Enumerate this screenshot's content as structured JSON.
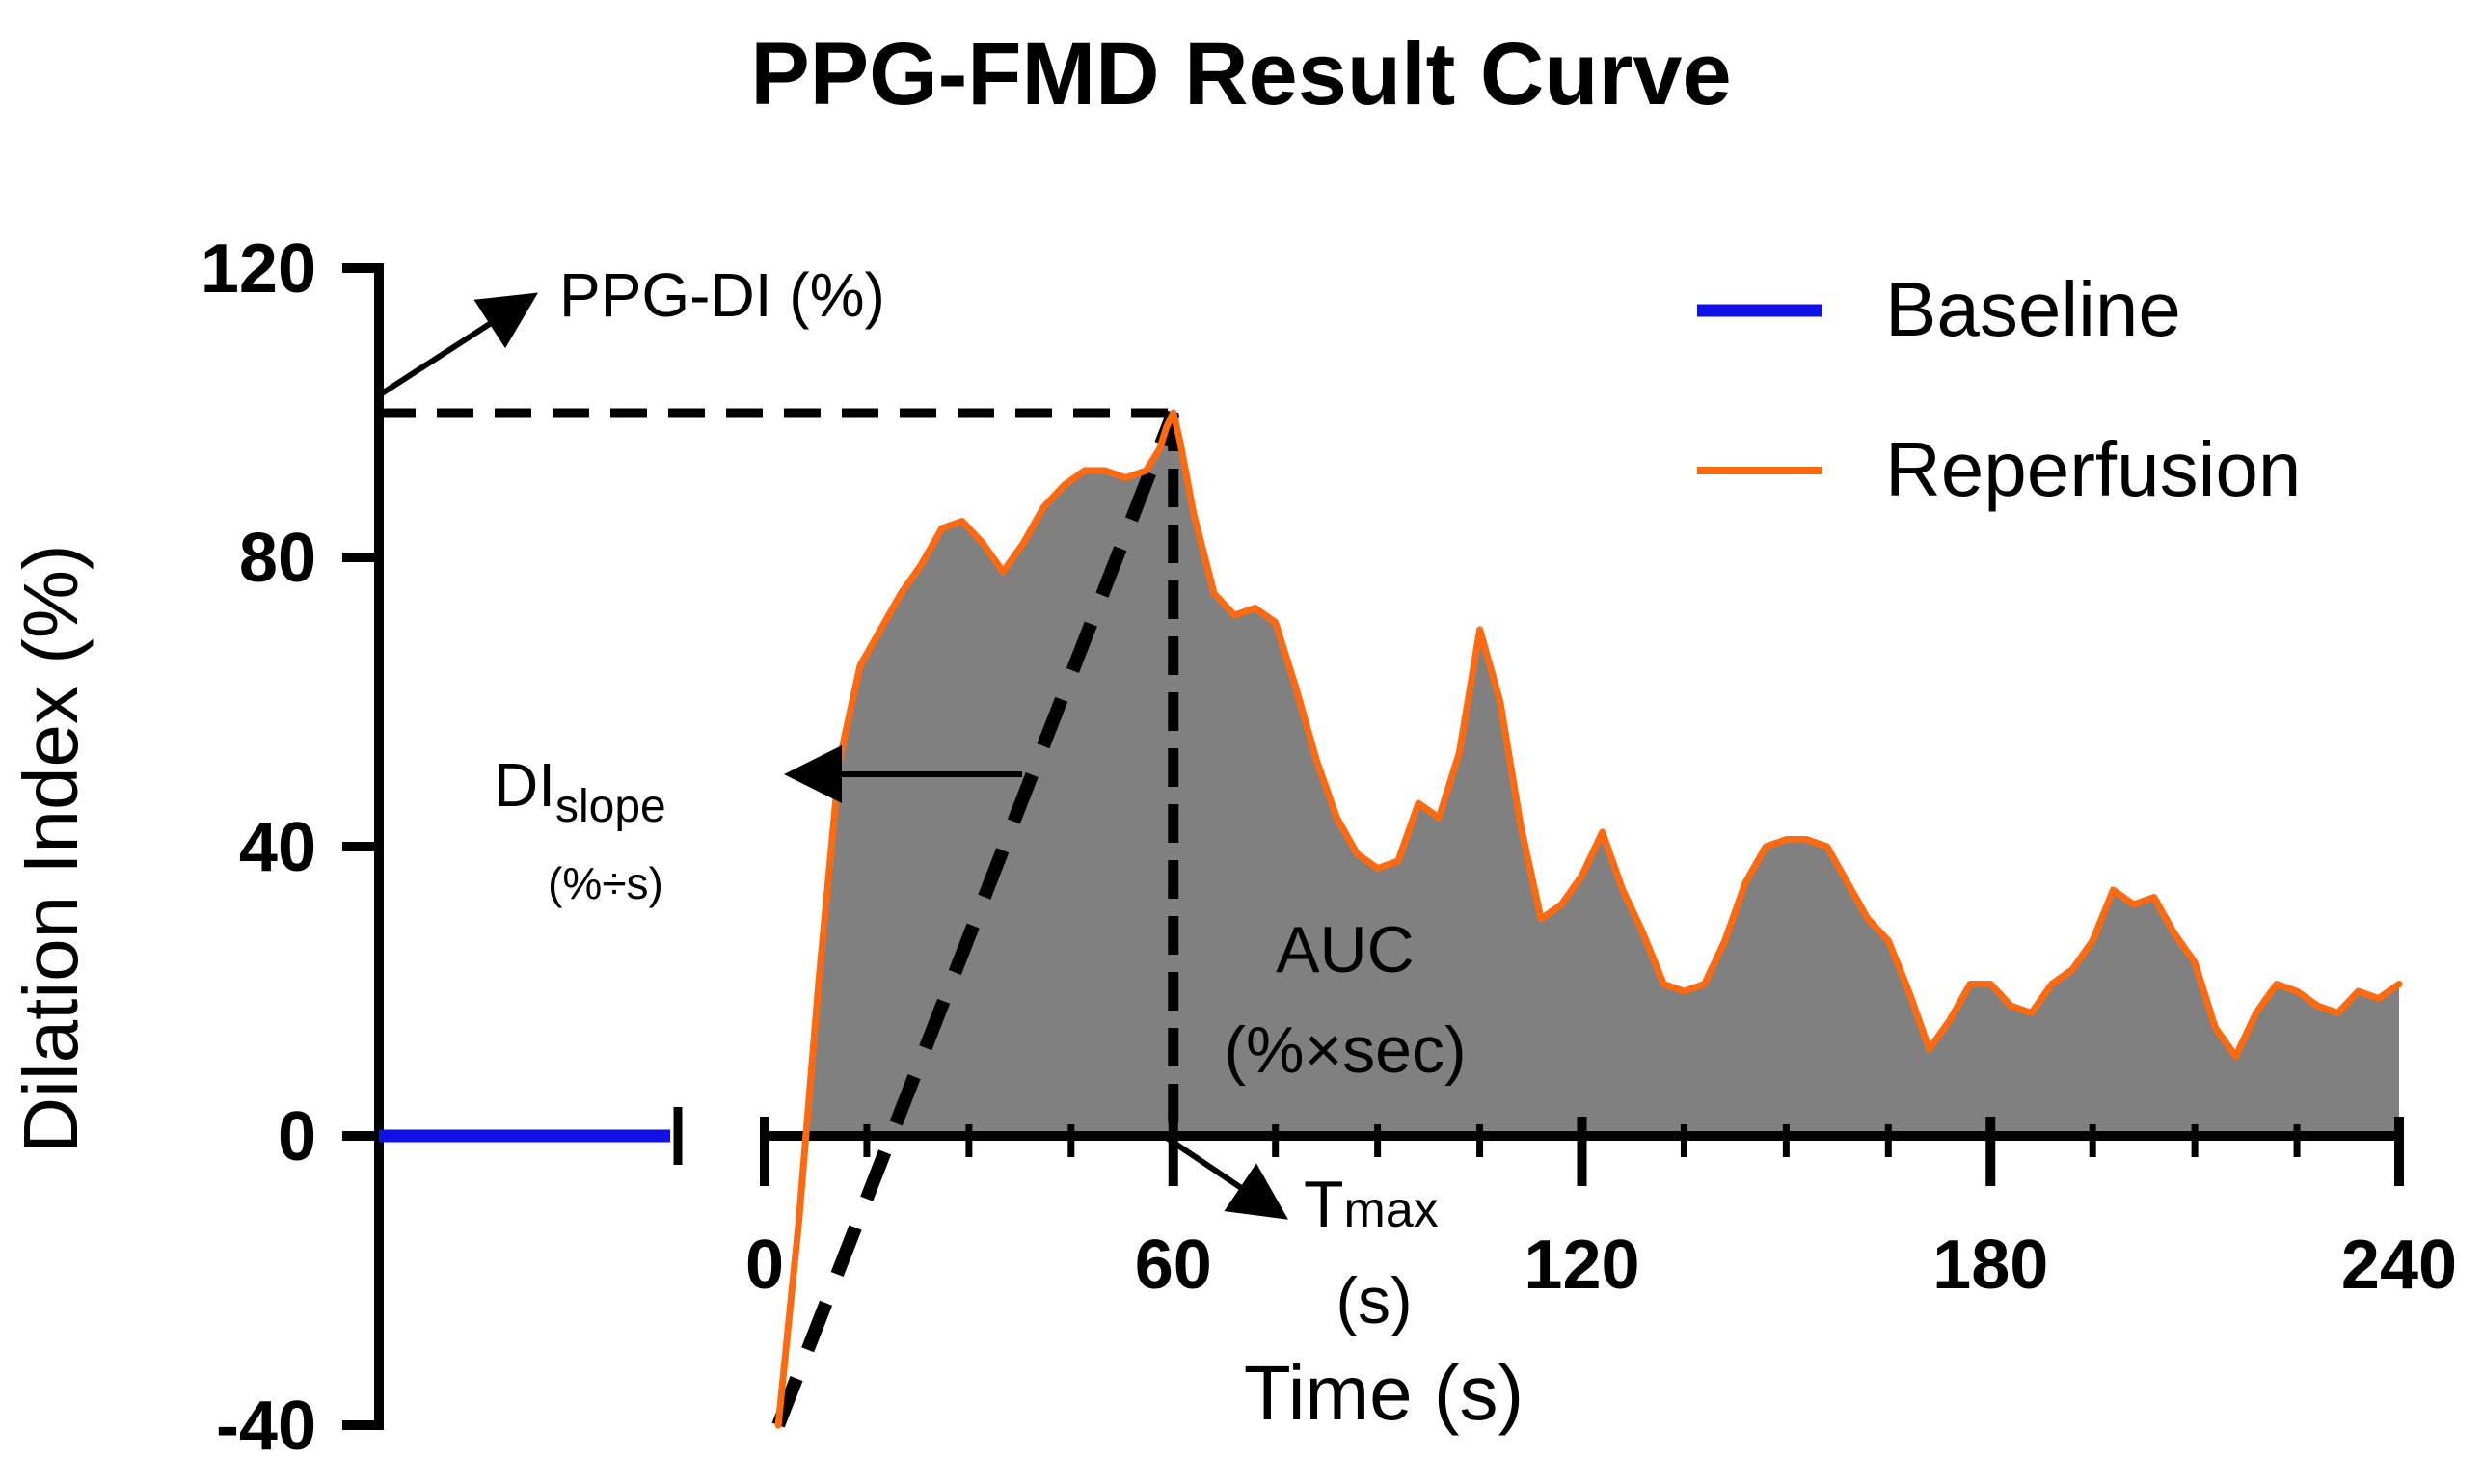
{
  "chart_data": {
    "type": "area",
    "title": "PPG-FMD Result Curve",
    "xlabel": "Time (s)",
    "ylabel": "Dilation Index (%)",
    "ylim": [
      -40,
      120
    ],
    "xlim": [
      0,
      240
    ],
    "y_ticks": [
      -40,
      0,
      40,
      80,
      120
    ],
    "x_ticks": [
      0,
      60,
      120,
      180,
      240
    ],
    "y_tick_labels": [
      "-40",
      "0",
      "40",
      "80",
      "120"
    ],
    "x_tick_labels": [
      "0",
      "60",
      "120",
      "180",
      "240"
    ],
    "grid": false,
    "legend_position": "top-right",
    "series": [
      {
        "name": "Baseline",
        "color": "#1010e8",
        "x": [
          0,
          240
        ],
        "y": [
          0,
          0
        ]
      },
      {
        "name": "Reperfusion",
        "color": "#ff6a10",
        "fill_color": "#808080",
        "x": [
          2,
          5,
          8,
          11,
          14,
          17,
          20,
          23,
          26,
          29,
          32,
          35,
          38,
          41,
          44,
          47,
          50,
          53,
          56,
          58,
          59,
          60,
          61,
          63,
          66,
          69,
          72,
          75,
          78,
          81,
          84,
          87,
          90,
          93,
          96,
          99,
          102,
          105,
          108,
          111,
          114,
          117,
          120,
          123,
          126,
          129,
          132,
          135,
          138,
          141,
          144,
          147,
          150,
          153,
          156,
          159,
          162,
          165,
          168,
          171,
          174,
          177,
          180,
          183,
          186,
          189,
          192,
          195,
          198,
          201,
          204,
          207,
          210,
          213,
          216,
          219,
          222,
          225,
          228,
          231,
          234,
          237,
          240
        ],
        "y": [
          -40,
          -12,
          22,
          52,
          65,
          70,
          75,
          79,
          84,
          85,
          82,
          78,
          82,
          87,
          90,
          92,
          92,
          91,
          92,
          95,
          98,
          100,
          96,
          86,
          75,
          72,
          73,
          71,
          62,
          52,
          44,
          39,
          37,
          38,
          46,
          44,
          53,
          70,
          60,
          43,
          30,
          32,
          36,
          42,
          34,
          28,
          21,
          20,
          21,
          27,
          35,
          40,
          41,
          41,
          40,
          35,
          30,
          27,
          20,
          12,
          16,
          21,
          21,
          18,
          17,
          21,
          23,
          27,
          34,
          32,
          33,
          28,
          24,
          15,
          11,
          17,
          21,
          20,
          18,
          17,
          20,
          19,
          21
        ]
      }
    ],
    "annotations": {
      "ppg_di": "PPG-DI (%)",
      "di_slope_main": "DI",
      "di_slope_sub": "slope",
      "di_slope_unit": "(%÷s)",
      "auc_line1": "AUC",
      "auc_line2": "(%×sec)",
      "tmax_main": "T",
      "tmax_sub": "max",
      "tmax_unit": "(s)",
      "peak_value": 100,
      "peak_time": 60,
      "slope_start": [
        2,
        -40
      ]
    }
  }
}
